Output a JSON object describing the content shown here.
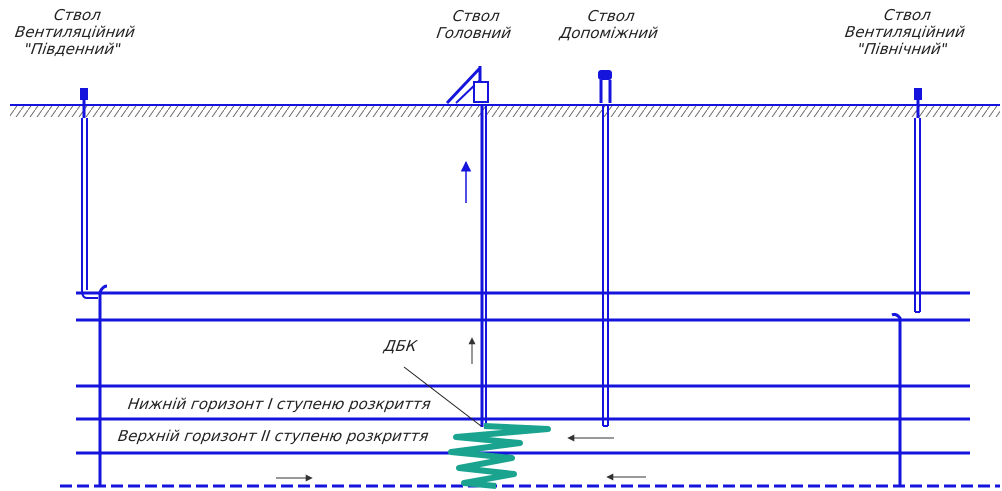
{
  "shafts": [
    {
      "id": "vent-south",
      "line1": "Ствол",
      "line2": "Вентиляційний",
      "line3": "\"Південний\""
    },
    {
      "id": "main",
      "line1": "Ствол",
      "line2": "Головний",
      "line3": ""
    },
    {
      "id": "auxiliary",
      "line1": "Ствол",
      "line2": "Допоміжний",
      "line3": ""
    },
    {
      "id": "vent-north",
      "line1": "Ствол",
      "line2": "Вентиляційний",
      "line3": "\"Північний\""
    }
  ],
  "callout": "ДБК",
  "levels": {
    "lower": "Нижній горизонт І ступеню розкриття",
    "upper": "Верхній горизонт ІІ ступеню розкриття"
  },
  "colors": {
    "line": "#1414dc",
    "ground": "#6d6d6d",
    "conveyor": "#1aa38e",
    "text": "#222222"
  }
}
